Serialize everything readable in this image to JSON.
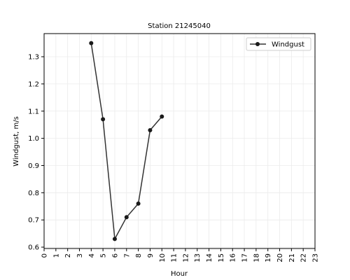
{
  "chart_data": {
    "type": "line",
    "title": "Station 21245040",
    "xlabel": "Hour",
    "ylabel": "Windgust, m/s",
    "xlim": [
      0,
      23
    ],
    "ylim": [
      0.595,
      1.385
    ],
    "x_ticks": [
      0,
      1,
      2,
      3,
      4,
      5,
      6,
      7,
      8,
      9,
      10,
      11,
      12,
      13,
      14,
      15,
      16,
      17,
      18,
      19,
      20,
      21,
      22,
      23
    ],
    "y_ticks": [
      0.6,
      0.7,
      0.8,
      0.9,
      1.0,
      1.1,
      1.2,
      1.3
    ],
    "y_tick_labels": [
      "0.6",
      "0.7",
      "0.8",
      "0.9",
      "1.0",
      "1.1",
      "1.2",
      "1.3"
    ],
    "grid": true,
    "legend_position": "top-right",
    "series": [
      {
        "name": "Windgust",
        "color": "#333333",
        "marker": "circle",
        "x": [
          4,
          5,
          6,
          7,
          8,
          9,
          10
        ],
        "y": [
          1.35,
          1.07,
          0.63,
          0.71,
          0.76,
          1.03,
          1.08
        ]
      }
    ]
  }
}
